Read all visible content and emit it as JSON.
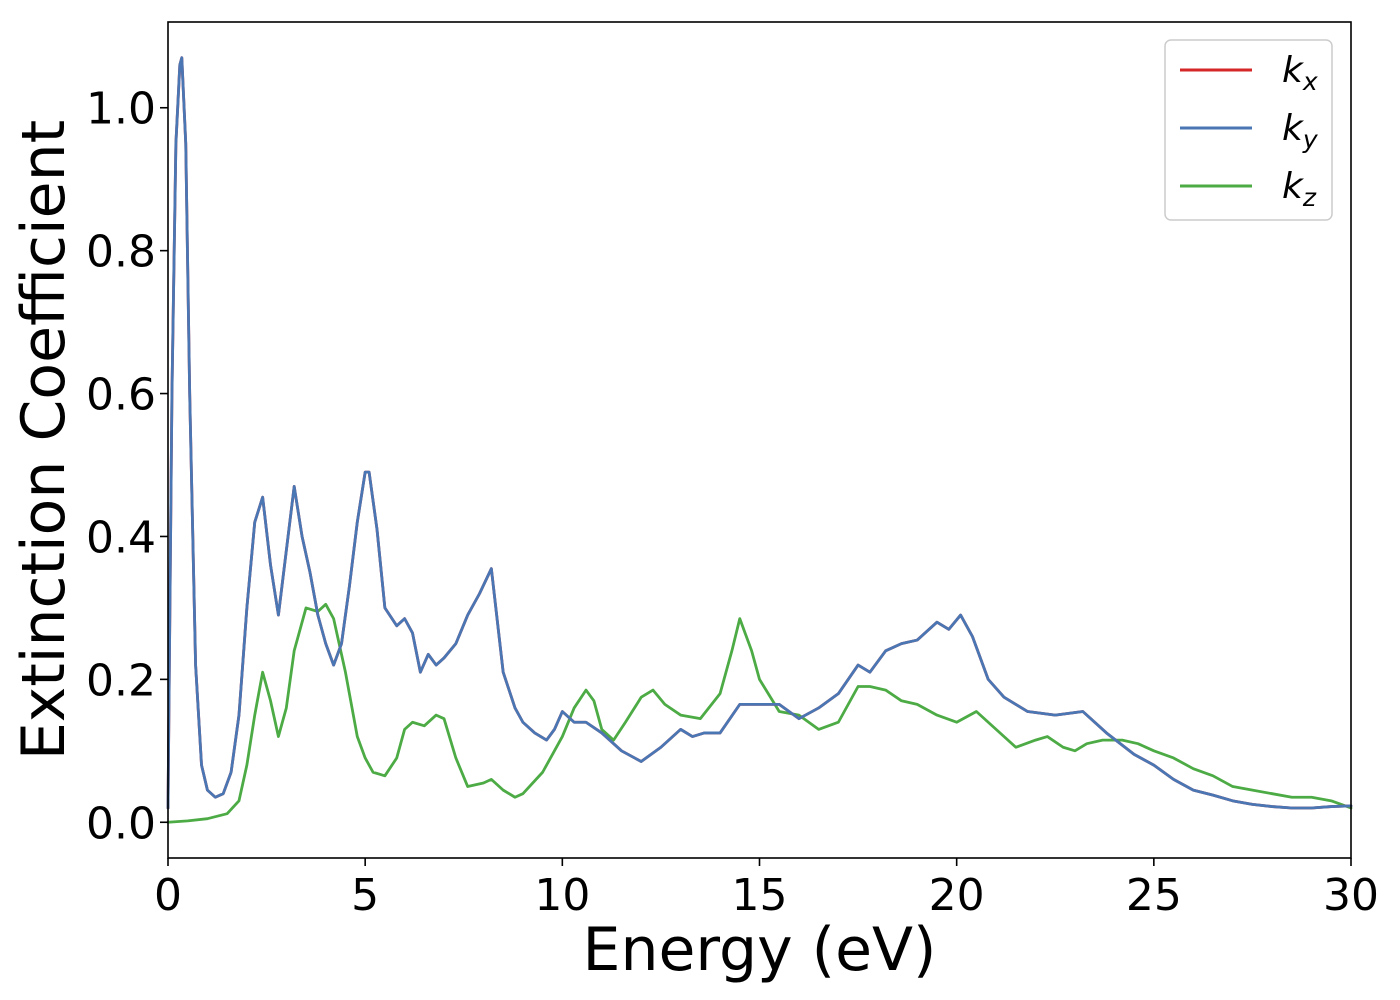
{
  "chart_data": {
    "type": "line",
    "xlabel": "Energy (eV)",
    "ylabel": "Extinction Coefficient",
    "xlim": [
      0,
      30
    ],
    "ylim": [
      -0.05,
      1.12
    ],
    "xticks": [
      0,
      5,
      10,
      15,
      20,
      25,
      30
    ],
    "xtick_labels": [
      "0",
      "5",
      "10",
      "15",
      "20",
      "25",
      "30"
    ],
    "yticks": [
      0.0,
      0.2,
      0.4,
      0.6,
      0.8,
      1.0
    ],
    "ytick_labels": [
      "0.0",
      "0.2",
      "0.4",
      "0.6",
      "0.8",
      "1.0"
    ],
    "grid": false,
    "legend_position": "top-right",
    "series": [
      {
        "name": "k",
        "subscript": "x",
        "color": "#d62728",
        "x": [
          0,
          0.1,
          0.2,
          0.3,
          0.35,
          0.45,
          0.55,
          0.7,
          0.85,
          1.0,
          1.2,
          1.4,
          1.6,
          1.8,
          2.0,
          2.2,
          2.4,
          2.6,
          2.8,
          3.0,
          3.2,
          3.4,
          3.6,
          3.8,
          4.0,
          4.2,
          4.4,
          4.6,
          4.8,
          5.0,
          5.1,
          5.3,
          5.5,
          5.8,
          6.0,
          6.2,
          6.4,
          6.6,
          6.8,
          7.0,
          7.3,
          7.6,
          7.9,
          8.2,
          8.5,
          8.8,
          9.0,
          9.3,
          9.6,
          9.8,
          10.0,
          10.3,
          10.6,
          11.0,
          11.5,
          12.0,
          12.5,
          13.0,
          13.3,
          13.6,
          14.0,
          14.5,
          15.0,
          15.5,
          16.0,
          16.5,
          17.0,
          17.5,
          17.8,
          18.2,
          18.6,
          19.0,
          19.5,
          19.8,
          20.1,
          20.4,
          20.8,
          21.2,
          21.8,
          22.5,
          23.2,
          23.8,
          24.5,
          25.0,
          25.5,
          26.0,
          26.5,
          27.0,
          27.5,
          28.0,
          28.5,
          29.0,
          29.5,
          30.0
        ],
        "y": [
          0.02,
          0.6,
          0.95,
          1.06,
          1.07,
          0.95,
          0.6,
          0.22,
          0.08,
          0.045,
          0.035,
          0.04,
          0.07,
          0.15,
          0.3,
          0.42,
          0.455,
          0.36,
          0.29,
          0.38,
          0.47,
          0.4,
          0.35,
          0.29,
          0.25,
          0.22,
          0.25,
          0.33,
          0.42,
          0.49,
          0.49,
          0.41,
          0.3,
          0.275,
          0.285,
          0.265,
          0.21,
          0.235,
          0.22,
          0.23,
          0.25,
          0.29,
          0.32,
          0.355,
          0.21,
          0.16,
          0.14,
          0.125,
          0.115,
          0.13,
          0.155,
          0.14,
          0.14,
          0.125,
          0.1,
          0.085,
          0.105,
          0.13,
          0.12,
          0.125,
          0.125,
          0.165,
          0.165,
          0.165,
          0.145,
          0.16,
          0.18,
          0.22,
          0.21,
          0.24,
          0.25,
          0.255,
          0.28,
          0.27,
          0.29,
          0.26,
          0.2,
          0.175,
          0.155,
          0.15,
          0.155,
          0.125,
          0.095,
          0.08,
          0.06,
          0.045,
          0.038,
          0.03,
          0.025,
          0.022,
          0.02,
          0.02,
          0.022,
          0.023
        ]
      },
      {
        "name": "k",
        "subscript": "y",
        "color": "#4a77b4",
        "x": [
          0,
          0.1,
          0.2,
          0.3,
          0.35,
          0.45,
          0.55,
          0.7,
          0.85,
          1.0,
          1.2,
          1.4,
          1.6,
          1.8,
          2.0,
          2.2,
          2.4,
          2.6,
          2.8,
          3.0,
          3.2,
          3.4,
          3.6,
          3.8,
          4.0,
          4.2,
          4.4,
          4.6,
          4.8,
          5.0,
          5.1,
          5.3,
          5.5,
          5.8,
          6.0,
          6.2,
          6.4,
          6.6,
          6.8,
          7.0,
          7.3,
          7.6,
          7.9,
          8.2,
          8.5,
          8.8,
          9.0,
          9.3,
          9.6,
          9.8,
          10.0,
          10.3,
          10.6,
          11.0,
          11.5,
          12.0,
          12.5,
          13.0,
          13.3,
          13.6,
          14.0,
          14.5,
          15.0,
          15.5,
          16.0,
          16.5,
          17.0,
          17.5,
          17.8,
          18.2,
          18.6,
          19.0,
          19.5,
          19.8,
          20.1,
          20.4,
          20.8,
          21.2,
          21.8,
          22.5,
          23.2,
          23.8,
          24.5,
          25.0,
          25.5,
          26.0,
          26.5,
          27.0,
          27.5,
          28.0,
          28.5,
          29.0,
          29.5,
          30.0
        ],
        "y": [
          0.02,
          0.6,
          0.95,
          1.06,
          1.07,
          0.95,
          0.6,
          0.22,
          0.08,
          0.045,
          0.035,
          0.04,
          0.07,
          0.15,
          0.3,
          0.42,
          0.455,
          0.36,
          0.29,
          0.38,
          0.47,
          0.4,
          0.35,
          0.29,
          0.25,
          0.22,
          0.25,
          0.33,
          0.42,
          0.49,
          0.49,
          0.41,
          0.3,
          0.275,
          0.285,
          0.265,
          0.21,
          0.235,
          0.22,
          0.23,
          0.25,
          0.29,
          0.32,
          0.355,
          0.21,
          0.16,
          0.14,
          0.125,
          0.115,
          0.13,
          0.155,
          0.14,
          0.14,
          0.125,
          0.1,
          0.085,
          0.105,
          0.13,
          0.12,
          0.125,
          0.125,
          0.165,
          0.165,
          0.165,
          0.145,
          0.16,
          0.18,
          0.22,
          0.21,
          0.24,
          0.25,
          0.255,
          0.28,
          0.27,
          0.29,
          0.26,
          0.2,
          0.175,
          0.155,
          0.15,
          0.155,
          0.125,
          0.095,
          0.08,
          0.06,
          0.045,
          0.038,
          0.03,
          0.025,
          0.022,
          0.02,
          0.02,
          0.022,
          0.023
        ]
      },
      {
        "name": "k",
        "subscript": "z",
        "color": "#4dab45",
        "x": [
          0,
          0.5,
          1.0,
          1.5,
          1.8,
          2.0,
          2.2,
          2.4,
          2.6,
          2.8,
          3.0,
          3.2,
          3.5,
          3.8,
          4.0,
          4.2,
          4.5,
          4.8,
          5.0,
          5.2,
          5.5,
          5.8,
          6.0,
          6.2,
          6.5,
          6.8,
          7.0,
          7.3,
          7.6,
          8.0,
          8.2,
          8.5,
          8.8,
          9.0,
          9.5,
          10.0,
          10.3,
          10.6,
          10.8,
          11.0,
          11.3,
          11.6,
          12.0,
          12.3,
          12.6,
          13.0,
          13.5,
          14.0,
          14.3,
          14.5,
          14.8,
          15.0,
          15.5,
          16.0,
          16.5,
          17.0,
          17.5,
          17.8,
          18.2,
          18.6,
          19.0,
          19.5,
          20.0,
          20.5,
          21.0,
          21.5,
          22.0,
          22.3,
          22.7,
          23.0,
          23.3,
          23.7,
          24.2,
          24.6,
          25.0,
          25.5,
          26.0,
          26.5,
          27.0,
          27.5,
          28.0,
          28.5,
          29.0,
          29.5,
          30.0
        ],
        "y": [
          0.0,
          0.002,
          0.005,
          0.012,
          0.03,
          0.08,
          0.15,
          0.21,
          0.17,
          0.12,
          0.16,
          0.24,
          0.3,
          0.295,
          0.305,
          0.285,
          0.21,
          0.12,
          0.09,
          0.07,
          0.065,
          0.09,
          0.13,
          0.14,
          0.135,
          0.15,
          0.145,
          0.09,
          0.05,
          0.055,
          0.06,
          0.045,
          0.035,
          0.04,
          0.07,
          0.12,
          0.16,
          0.185,
          0.17,
          0.13,
          0.115,
          0.14,
          0.175,
          0.185,
          0.165,
          0.15,
          0.145,
          0.18,
          0.24,
          0.285,
          0.24,
          0.2,
          0.155,
          0.15,
          0.13,
          0.14,
          0.19,
          0.19,
          0.185,
          0.17,
          0.165,
          0.15,
          0.14,
          0.155,
          0.13,
          0.105,
          0.115,
          0.12,
          0.105,
          0.1,
          0.11,
          0.115,
          0.115,
          0.11,
          0.1,
          0.09,
          0.075,
          0.065,
          0.05,
          0.045,
          0.04,
          0.035,
          0.035,
          0.03,
          0.02
        ]
      }
    ]
  }
}
